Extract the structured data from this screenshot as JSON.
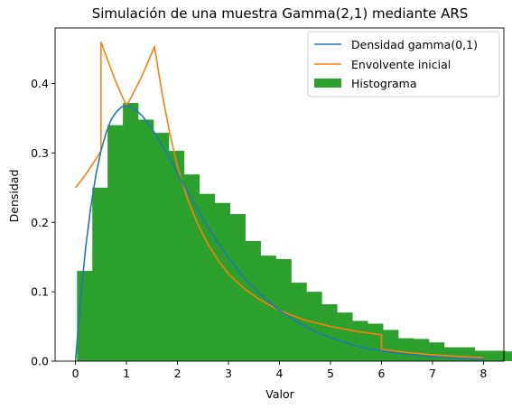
{
  "chart_data": {
    "type": "histogram_with_lines",
    "title": "Simulación de una muestra Gamma(2,1) mediante ARS",
    "xlabel": "Valor",
    "ylabel": "Densidad",
    "xlim": [
      -0.4,
      8.4
    ],
    "ylim": [
      0,
      0.48
    ],
    "xticks": [
      0,
      1,
      2,
      3,
      4,
      5,
      6,
      7,
      8
    ],
    "yticks": [
      0.0,
      0.1,
      0.2,
      0.3,
      0.4
    ],
    "xtick_labels": [
      "0",
      "1",
      "2",
      "3",
      "4",
      "5",
      "6",
      "7",
      "8"
    ],
    "ytick_labels": [
      "0.0",
      "0.1",
      "0.2",
      "0.3",
      "0.4"
    ],
    "legend_position": "top-right",
    "colors": {
      "density": "#1f77b4",
      "envelope": "#ff7f0e",
      "histogram": "#2ca02c"
    },
    "histogram": {
      "name": "Histograma",
      "bin_width": 0.3,
      "bin_start": 0.03,
      "values": [
        0.13,
        0.25,
        0.34,
        0.372,
        0.348,
        0.329,
        0.303,
        0.269,
        0.241,
        0.228,
        0.212,
        0.173,
        0.152,
        0.147,
        0.113,
        0.1,
        0.082,
        0.07,
        0.058,
        0.054,
        0.045,
        0.033,
        0.032,
        0.027,
        0.02,
        0.02,
        0.015,
        0.015,
        0.014,
        0.014,
        0.011,
        0.007,
        0.007,
        0.006,
        0.006,
        0.006
      ]
    },
    "series": [
      {
        "name": "Densidad gamma(0,1)",
        "x": [
          0,
          0.1,
          0.2,
          0.3,
          0.4,
          0.5,
          0.6,
          0.7,
          0.8,
          0.9,
          1.0,
          1.1,
          1.2,
          1.3,
          1.4,
          1.5,
          1.6,
          1.8,
          2.0,
          2.2,
          2.4,
          2.6,
          2.8,
          3.0,
          3.2,
          3.4,
          3.6,
          3.8,
          4.0,
          4.25,
          4.5,
          4.75,
          5.0,
          5.25,
          5.5,
          5.75,
          6.0,
          6.25,
          6.5,
          6.75,
          7.0,
          7.25,
          7.5,
          7.75,
          8.0
        ],
        "values": [
          0,
          0.09,
          0.164,
          0.222,
          0.268,
          0.303,
          0.329,
          0.348,
          0.359,
          0.366,
          0.368,
          0.366,
          0.361,
          0.354,
          0.345,
          0.335,
          0.323,
          0.298,
          0.271,
          0.244,
          0.218,
          0.193,
          0.17,
          0.149,
          0.13,
          0.113,
          0.098,
          0.085,
          0.073,
          0.061,
          0.05,
          0.041,
          0.034,
          0.028,
          0.022,
          0.018,
          0.015,
          0.012,
          0.0098,
          0.0079,
          0.0064,
          0.0052,
          0.0041,
          0.0033,
          0.0027
        ]
      },
      {
        "name": "Envolvente inicial",
        "x": [
          0,
          0.1,
          0.2,
          0.3,
          0.4,
          0.5,
          0.5,
          0.6,
          0.7,
          0.8,
          0.9,
          1.0,
          1.1,
          1.2,
          1.3,
          1.4,
          1.55,
          1.55,
          1.7,
          1.85,
          2.0,
          2.2,
          2.4,
          2.6,
          2.8,
          3.0,
          3.3,
          3.6,
          4.0,
          4.5,
          5.0,
          5.5,
          6.0,
          6.0,
          6.5,
          7.0,
          7.5,
          8.0
        ],
        "values": [
          0.25,
          0.259,
          0.269,
          0.28,
          0.291,
          0.303,
          0.46,
          0.44,
          0.42,
          0.401,
          0.384,
          0.368,
          0.381,
          0.396,
          0.41,
          0.427,
          0.453,
          0.453,
          0.385,
          0.328,
          0.28,
          0.233,
          0.197,
          0.168,
          0.145,
          0.126,
          0.105,
          0.089,
          0.073,
          0.059,
          0.05,
          0.043,
          0.038,
          0.017,
          0.0125,
          0.0092,
          0.0067,
          0.0049
        ]
      }
    ]
  }
}
